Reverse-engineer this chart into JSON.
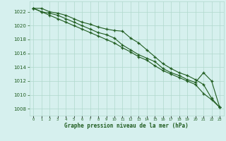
{
  "x": [
    0,
    1,
    2,
    3,
    4,
    5,
    6,
    7,
    8,
    9,
    10,
    11,
    12,
    13,
    14,
    15,
    16,
    17,
    18,
    19,
    20,
    21,
    22,
    23
  ],
  "line1": [
    1022.5,
    1022.5,
    1022.0,
    1021.8,
    1021.5,
    1021.0,
    1020.5,
    1020.2,
    1019.8,
    1019.5,
    1019.3,
    1019.2,
    1018.2,
    1017.5,
    1016.5,
    1015.5,
    1014.5,
    1013.8,
    1013.2,
    1012.8,
    1012.2,
    1011.5,
    1009.5,
    1008.2
  ],
  "line2": [
    1022.5,
    1022.0,
    1021.8,
    1021.5,
    1021.0,
    1020.5,
    1020.0,
    1019.5,
    1019.0,
    1018.7,
    1018.2,
    1017.2,
    1016.5,
    1015.8,
    1015.3,
    1014.8,
    1013.8,
    1013.2,
    1012.8,
    1012.2,
    1011.8,
    1013.2,
    1012.0,
    1008.2
  ],
  "line3": [
    1022.5,
    1022.0,
    1021.5,
    1021.0,
    1020.5,
    1020.0,
    1019.5,
    1019.0,
    1018.5,
    1018.0,
    1017.5,
    1016.8,
    1016.2,
    1015.5,
    1015.0,
    1014.2,
    1013.5,
    1013.0,
    1012.5,
    1012.0,
    1011.5,
    1010.2,
    1009.3,
    1008.2
  ],
  "bg_color": "#d6f0ee",
  "grid_color": "#b0d8cc",
  "line_color": "#1f5c1f",
  "ylabel_ticks": [
    1008,
    1010,
    1012,
    1014,
    1016,
    1018,
    1020,
    1022
  ],
  "xlabel": "Graphe pression niveau de la mer (hPa)",
  "ylim": [
    1007.0,
    1023.5
  ],
  "xlim": [
    -0.5,
    23.5
  ]
}
